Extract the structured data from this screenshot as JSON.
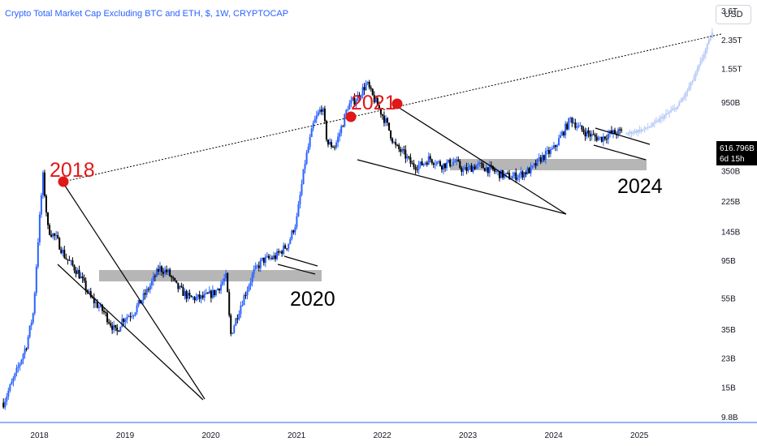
{
  "header": {
    "title": "Crypto Total Market Cap Excluding BTC and ETH, $, 1W, CRYPTOCAP",
    "currency_label": "USD"
  },
  "price_tag": {
    "value": "616.796B",
    "countdown": "6d 15h",
    "color": "#000000"
  },
  "colors": {
    "up": "#2962ff",
    "down": "#000000",
    "projection": "#b5c9f7",
    "zone": "#a9a9a9",
    "peak_marker": "#e01818",
    "axis_line": "#2962ff"
  },
  "chart_data": {
    "type": "candlestick",
    "title": "Crypto Total Market Cap Excluding BTC and ETH, $, 1W, CRYPTOCAP",
    "y_scale": "log",
    "y_ticks": [
      "3.6T",
      "2.35T",
      "1.55T",
      "950B",
      "350B",
      "225B",
      "145B",
      "95B",
      "55B",
      "35B",
      "23B",
      "15B",
      "9.8B"
    ],
    "x_ticks": [
      "2018",
      "2019",
      "2020",
      "2021",
      "2022",
      "2023",
      "2024",
      "2025"
    ],
    "x_range": [
      2017.54,
      2025.88
    ],
    "y_range_billions": [
      9.0,
      4200
    ],
    "series": [
      {
        "style": "candles",
        "x": [
          2017.58,
          2017.72,
          2017.85,
          2017.93,
          2017.98,
          2018.04,
          2018.1,
          2018.2,
          2018.3,
          2018.45,
          2018.6,
          2018.75,
          2018.9,
          2018.96,
          2019.1,
          2019.25,
          2019.4,
          2019.5,
          2019.6,
          2019.75,
          2019.9,
          2020.05,
          2020.18,
          2020.23,
          2020.35,
          2020.5,
          2020.6,
          2020.75,
          2020.9,
          2021.0,
          2021.1,
          2021.2,
          2021.3,
          2021.36,
          2021.45,
          2021.5,
          2021.6,
          2021.7,
          2021.82,
          2021.88,
          2021.95,
          2022.05,
          2022.15,
          2022.25,
          2022.35,
          2022.45,
          2022.55,
          2022.7,
          2022.85,
          2022.95,
          2023.1,
          2023.25,
          2023.4,
          2023.5,
          2023.6,
          2023.75,
          2023.85,
          2024.0,
          2024.1,
          2024.2,
          2024.3,
          2024.45,
          2024.55,
          2024.65,
          2024.8
        ],
        "values_billions": [
          12,
          18,
          28,
          45,
          120,
          330,
          150,
          130,
          100,
          80,
          55,
          45,
          33,
          40,
          45,
          60,
          85,
          80,
          65,
          55,
          55,
          60,
          75,
          32,
          50,
          80,
          95,
          100,
          120,
          170,
          400,
          700,
          900,
          520,
          500,
          600,
          900,
          1000,
          1250,
          1050,
          900,
          700,
          500,
          450,
          380,
          380,
          420,
          380,
          400,
          350,
          380,
          360,
          330,
          320,
          330,
          360,
          420,
          480,
          600,
          750,
          650,
          580,
          560,
          600,
          617
        ]
      },
      {
        "style": "projection",
        "x": [
          2024.85,
          2024.95,
          2025.05,
          2025.15,
          2025.25,
          2025.35,
          2025.45,
          2025.55,
          2025.65,
          2025.75,
          2025.85
        ],
        "values_billions": [
          600,
          620,
          640,
          680,
          750,
          820,
          900,
          1100,
          1400,
          1900,
          2600
        ]
      }
    ],
    "annotations": {
      "peaks": [
        {
          "label": "2018",
          "x": 2018.0,
          "value_billions": 360
        },
        {
          "label": "2021",
          "x": 2021.33,
          "value_billions": 940
        },
        {
          "label": "2021",
          "x": 2021.84,
          "value_billions": 1200
        }
      ],
      "breakout_labels": [
        {
          "label": "2020",
          "x": 2020.88,
          "value_billions": 62
        },
        {
          "label": "2024",
          "x": 2024.55,
          "value_billions": 360
        }
      ]
    }
  }
}
